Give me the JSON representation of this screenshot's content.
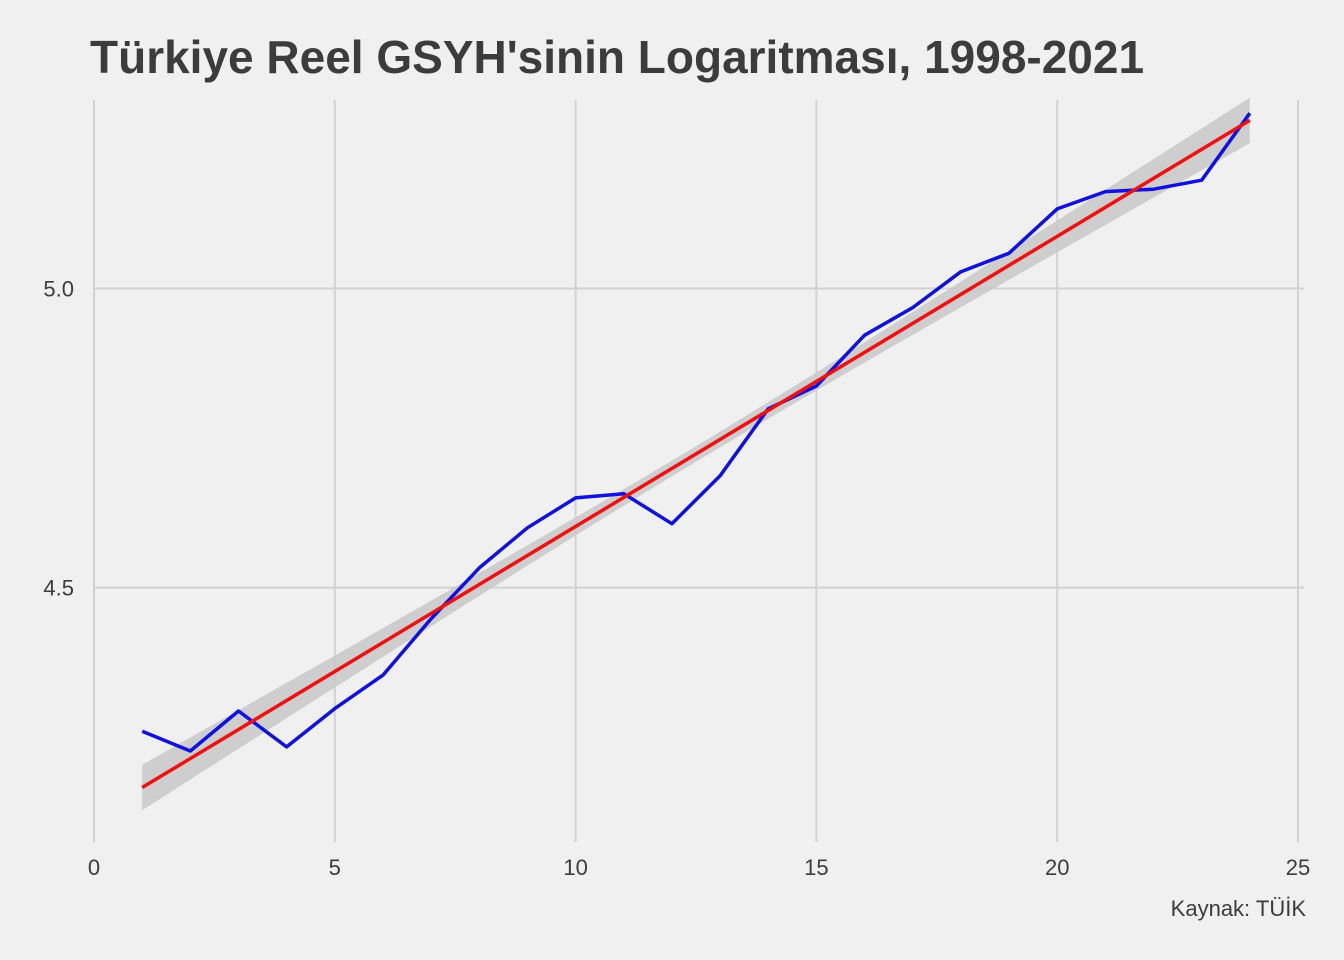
{
  "chart_data": {
    "type": "line",
    "title": "Türkiye Reel GSYH'sinin Logaritması, 1998-2021",
    "caption": "Kaynak: TÜİK",
    "xlabel": "",
    "ylabel": "",
    "xlim": [
      0,
      25
    ],
    "ylim": [
      4.075,
      5.315
    ],
    "xticks": [
      0,
      5,
      10,
      15,
      20,
      25
    ],
    "yticks": [
      4.5,
      5.0
    ],
    "ytick_labels": [
      "4.5",
      "5.0"
    ],
    "grid": true,
    "series": [
      {
        "color": "#1010e0",
        "x": [
          1,
          2,
          3,
          4,
          5,
          6,
          7,
          8,
          9,
          10,
          11,
          12,
          13,
          14,
          15,
          16,
          17,
          18,
          19,
          20,
          21,
          22,
          23,
          24
        ],
        "y": [
          4.26,
          4.227,
          4.294,
          4.234,
          4.298,
          4.354,
          4.448,
          4.533,
          4.6,
          4.65,
          4.657,
          4.607,
          4.687,
          4.799,
          4.837,
          4.922,
          4.968,
          5.028,
          5.059,
          5.133,
          5.162,
          5.166,
          5.181,
          5.293
        ]
      }
    ],
    "fit": {
      "color": "#ee1111",
      "band_color": "#c8c8c8",
      "x": [
        1,
        24
      ],
      "y": [
        4.166,
        5.281
      ],
      "band_halfwidth": [
        0.038,
        0.038
      ],
      "band_center_halfwidth": 0.013
    }
  }
}
